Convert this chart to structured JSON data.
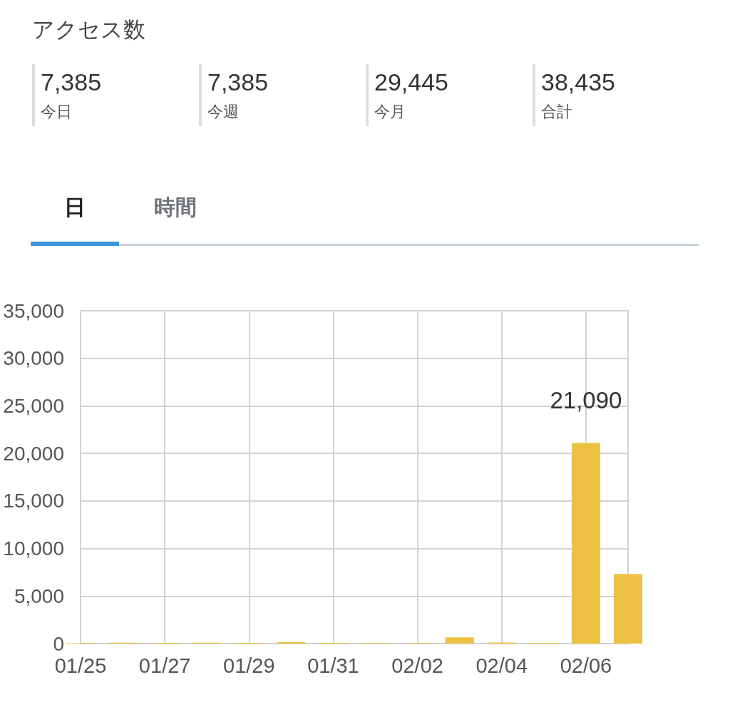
{
  "chart_data": {
    "type": "bar",
    "title": "アクセス数",
    "annotations": [
      "7,385",
      "今日",
      "7,385",
      "今週",
      "29,445",
      "今月",
      "38,435",
      "合計",
      "日",
      "時間"
    ],
    "categories": [
      "01/25",
      null,
      "01/27",
      null,
      "01/29",
      null,
      "01/31",
      null,
      "02/02",
      null,
      "02/04",
      null,
      "02/06",
      null
    ],
    "values": [
      50,
      100,
      80,
      100,
      80,
      150,
      80,
      60,
      60,
      650,
      120,
      80,
      21090,
      7300
    ],
    "value_labels": [
      null,
      null,
      null,
      null,
      null,
      null,
      null,
      null,
      null,
      null,
      null,
      null,
      "21,090",
      null
    ],
    "color": "#ecc142",
    "ylim": [
      0,
      35000
    ],
    "yticks": [
      0,
      {
        "value": 5000,
        "label": "5,000"
      },
      {
        "value": 10000,
        "label": "10,000"
      },
      {
        "value": 15000,
        "label": "15,000"
      },
      {
        "value": 20000,
        "label": "20,000"
      },
      {
        "value": 25000,
        "label": "25,000"
      },
      {
        "value": 30000,
        "label": "30,000"
      },
      {
        "value": 35000,
        "label": "35,000"
      }
    ],
    "grid": true
  }
}
